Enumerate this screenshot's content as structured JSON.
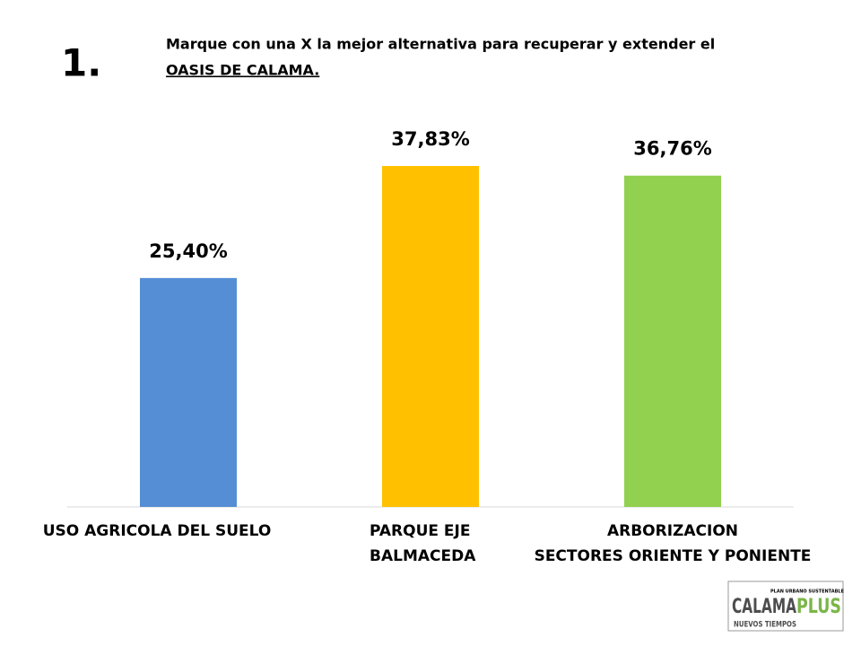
{
  "slide_number": "1.",
  "chart_data": {
    "type": "bar",
    "title": [
      "Marque con una X la mejor alternativa para recuperar y extender el",
      "OASIS DE CALAMA."
    ],
    "categories": [
      [
        "USO AGRICOLA DEL SUELO"
      ],
      [
        "PARQUE  EJE",
        "BALMACEDA"
      ],
      [
        "ARBORIZACION",
        "SECTORES ORIENTE Y PONIENTE"
      ]
    ],
    "values": [
      25.4,
      37.83,
      36.76
    ],
    "value_labels": [
      "25,40%",
      "37,83%",
      "36,76%"
    ],
    "colors": [
      "#558ed5",
      "#ffc000",
      "#92d050"
    ]
  },
  "logo": {
    "small": "PLAN URBANO SUSTENTABLE",
    "name_a": "CALAMA",
    "name_b": "PLUS",
    "tagline": "NUEVOS TIEMPOS"
  }
}
